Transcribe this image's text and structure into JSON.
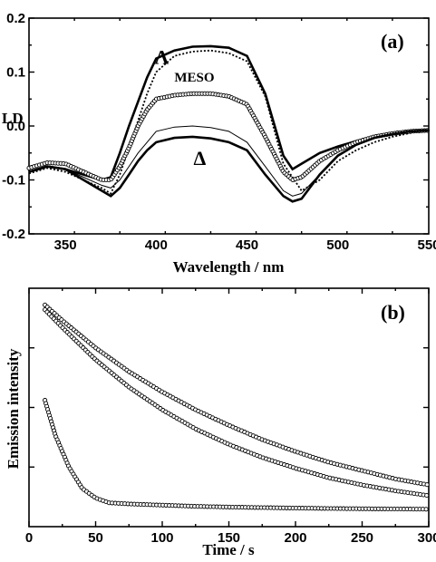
{
  "chart_data": [
    {
      "type": "line",
      "panel_label": "(a)",
      "xlabel": "Wavelength / nm",
      "ylabel": "LD",
      "xlim": [
        330,
        550
      ],
      "ylim": [
        -0.2,
        0.2
      ],
      "x_ticks": [
        350,
        400,
        450,
        500,
        550
      ],
      "y_ticks": [
        "-0.2",
        "-0.1",
        "0.0",
        "0.1",
        "0.2"
      ],
      "grid": false,
      "annotations": [
        {
          "text": "Λ",
          "x": 403,
          "y": 0.115
        },
        {
          "text": "MESO",
          "x": 421,
          "y": 0.082
        },
        {
          "text": "Δ",
          "x": 424,
          "y": -0.072
        }
      ],
      "series": [
        {
          "style": "thick-solid",
          "color": "#000000",
          "x": [
            330,
            340,
            350,
            360,
            370,
            375,
            380,
            385,
            390,
            395,
            400,
            410,
            420,
            430,
            440,
            450,
            460,
            470,
            475,
            480,
            490,
            500,
            510,
            520,
            530,
            540,
            550
          ],
          "y": [
            -0.085,
            -0.075,
            -0.08,
            -0.09,
            -0.1,
            -0.095,
            -0.05,
            0.0,
            0.045,
            0.09,
            0.125,
            0.14,
            0.147,
            0.148,
            0.145,
            0.13,
            0.06,
            -0.055,
            -0.08,
            -0.07,
            -0.05,
            -0.038,
            -0.028,
            -0.02,
            -0.015,
            -0.01,
            -0.008
          ]
        },
        {
          "style": "dotted",
          "color": "#000000",
          "x": [
            330,
            340,
            350,
            360,
            370,
            375,
            380,
            385,
            390,
            395,
            400,
            410,
            420,
            430,
            440,
            450,
            460,
            470,
            480,
            490,
            500,
            510,
            520,
            530,
            540,
            550
          ],
          "y": [
            -0.088,
            -0.078,
            -0.085,
            -0.1,
            -0.115,
            -0.125,
            -0.09,
            -0.04,
            0.01,
            0.06,
            0.1,
            0.13,
            0.138,
            0.14,
            0.135,
            0.12,
            0.055,
            -0.07,
            -0.12,
            -0.1,
            -0.065,
            -0.045,
            -0.03,
            -0.02,
            -0.013,
            -0.008
          ]
        },
        {
          "style": "open-circles",
          "color": "#000000",
          "x": [
            330,
            340,
            350,
            360,
            370,
            375,
            380,
            385,
            390,
            395,
            400,
            410,
            420,
            430,
            440,
            450,
            460,
            470,
            475,
            480,
            490,
            500,
            510,
            520,
            530,
            540,
            550
          ],
          "y": [
            -0.078,
            -0.068,
            -0.07,
            -0.085,
            -0.1,
            -0.1,
            -0.075,
            -0.04,
            0.0,
            0.03,
            0.05,
            0.057,
            0.06,
            0.06,
            0.055,
            0.04,
            -0.02,
            -0.085,
            -0.1,
            -0.095,
            -0.065,
            -0.045,
            -0.03,
            -0.02,
            -0.014,
            -0.01,
            -0.008
          ]
        },
        {
          "style": "thin-solid",
          "color": "#000000",
          "x": [
            330,
            340,
            350,
            360,
            370,
            375,
            380,
            385,
            390,
            395,
            400,
            410,
            420,
            430,
            440,
            450,
            460,
            470,
            475,
            480,
            490,
            500,
            510,
            520,
            530,
            540,
            550
          ],
          "y": [
            -0.085,
            -0.075,
            -0.08,
            -0.095,
            -0.11,
            -0.115,
            -0.1,
            -0.075,
            -0.05,
            -0.03,
            -0.01,
            -0.002,
            0.0,
            -0.003,
            -0.01,
            -0.03,
            -0.075,
            -0.12,
            -0.13,
            -0.125,
            -0.09,
            -0.055,
            -0.035,
            -0.022,
            -0.015,
            -0.01,
            -0.008
          ]
        },
        {
          "style": "thick-solid",
          "color": "#000000",
          "x": [
            330,
            340,
            350,
            360,
            370,
            375,
            380,
            385,
            390,
            395,
            400,
            410,
            420,
            430,
            440,
            450,
            460,
            470,
            475,
            480,
            490,
            500,
            510,
            520,
            530,
            540,
            550
          ],
          "y": [
            -0.085,
            -0.075,
            -0.08,
            -0.1,
            -0.12,
            -0.13,
            -0.115,
            -0.09,
            -0.065,
            -0.045,
            -0.03,
            -0.022,
            -0.02,
            -0.023,
            -0.03,
            -0.045,
            -0.09,
            -0.13,
            -0.14,
            -0.135,
            -0.09,
            -0.055,
            -0.035,
            -0.022,
            -0.015,
            -0.01,
            -0.008
          ]
        }
      ]
    },
    {
      "type": "line",
      "panel_label": "(b)",
      "xlabel": "Time / s",
      "ylabel": "Emission intensity",
      "xlim": [
        0,
        300
      ],
      "ylim": [
        0,
        1
      ],
      "x_ticks": [
        0,
        50,
        100,
        150,
        200,
        250,
        300
      ],
      "y_ticks": [],
      "grid": false,
      "series": [
        {
          "style": "circles-line",
          "color": "#000000",
          "x": [
            12,
            25,
            50,
            75,
            100,
            125,
            150,
            175,
            200,
            225,
            250,
            275,
            300
          ],
          "y": [
            0.93,
            0.865,
            0.75,
            0.65,
            0.565,
            0.49,
            0.425,
            0.365,
            0.315,
            0.27,
            0.235,
            0.2,
            0.175
          ]
        },
        {
          "style": "circles-line",
          "color": "#000000",
          "x": [
            12,
            25,
            50,
            75,
            100,
            125,
            150,
            175,
            200,
            225,
            250,
            275,
            300
          ],
          "y": [
            0.91,
            0.835,
            0.7,
            0.585,
            0.49,
            0.41,
            0.345,
            0.29,
            0.245,
            0.205,
            0.175,
            0.15,
            0.13
          ]
        },
        {
          "style": "circles-line",
          "color": "#000000",
          "x": [
            12,
            20,
            30,
            40,
            50,
            60,
            75,
            100,
            125,
            150,
            175,
            200,
            225,
            250,
            275,
            300
          ],
          "y": [
            0.53,
            0.38,
            0.25,
            0.16,
            0.12,
            0.1,
            0.095,
            0.09,
            0.085,
            0.082,
            0.08,
            0.078,
            0.076,
            0.075,
            0.074,
            0.073
          ]
        }
      ]
    }
  ]
}
